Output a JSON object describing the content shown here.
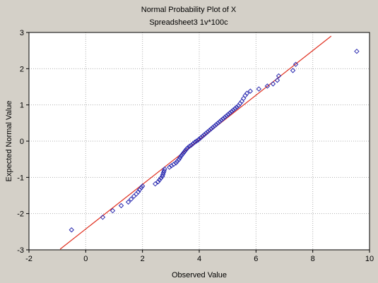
{
  "colors": {
    "background": "#d4d0c8",
    "plot_area": "#ffffff",
    "grid": "#b0b0b0",
    "fit_line": "#e03020",
    "markers": "#2b2bb0"
  },
  "chart_data": {
    "type": "scatter",
    "title": "Normal Probability Plot of X",
    "subtitle": "Spreadsheet3 1v*100c",
    "xlabel": "Observed Value",
    "ylabel": "Expected Normal Value",
    "xlim": [
      -2,
      10
    ],
    "ylim": [
      -3,
      3
    ],
    "xticks": [
      -2,
      0,
      2,
      4,
      6,
      8,
      10
    ],
    "yticks": [
      -3,
      -2,
      -1,
      0,
      1,
      2,
      3
    ],
    "grid": true,
    "marker": "diamond-open",
    "fit_line": [
      [
        -0.9,
        -2.98
      ],
      [
        8.65,
        2.9
      ]
    ],
    "points": [
      [
        -0.5,
        -2.45
      ],
      [
        0.6,
        -2.1
      ],
      [
        0.95,
        -1.92
      ],
      [
        1.25,
        -1.78
      ],
      [
        1.5,
        -1.68
      ],
      [
        1.6,
        -1.6
      ],
      [
        1.7,
        -1.52
      ],
      [
        1.78,
        -1.46
      ],
      [
        1.85,
        -1.4
      ],
      [
        1.9,
        -1.34
      ],
      [
        1.96,
        -1.28
      ],
      [
        2.0,
        -1.24
      ],
      [
        2.45,
        -1.18
      ],
      [
        2.55,
        -1.12
      ],
      [
        2.6,
        -1.07
      ],
      [
        2.65,
        -1.02
      ],
      [
        2.7,
        -0.97
      ],
      [
        2.72,
        -0.92
      ],
      [
        2.74,
        -0.87
      ],
      [
        2.76,
        -0.82
      ],
      [
        2.78,
        -0.77
      ],
      [
        2.95,
        -0.72
      ],
      [
        3.02,
        -0.68
      ],
      [
        3.1,
        -0.64
      ],
      [
        3.18,
        -0.6
      ],
      [
        3.22,
        -0.56
      ],
      [
        3.28,
        -0.51
      ],
      [
        3.32,
        -0.46
      ],
      [
        3.36,
        -0.41
      ],
      [
        3.4,
        -0.37
      ],
      [
        3.44,
        -0.33
      ],
      [
        3.48,
        -0.29
      ],
      [
        3.52,
        -0.25
      ],
      [
        3.56,
        -0.21
      ],
      [
        3.6,
        -0.18
      ],
      [
        3.66,
        -0.14
      ],
      [
        3.72,
        -0.11
      ],
      [
        3.78,
        -0.07
      ],
      [
        3.84,
        -0.03
      ],
      [
        3.9,
        0.0
      ],
      [
        3.96,
        0.03
      ],
      [
        4.0,
        0.06
      ],
      [
        4.06,
        0.1
      ],
      [
        4.12,
        0.14
      ],
      [
        4.18,
        0.18
      ],
      [
        4.24,
        0.22
      ],
      [
        4.3,
        0.26
      ],
      [
        4.36,
        0.3
      ],
      [
        4.42,
        0.34
      ],
      [
        4.48,
        0.38
      ],
      [
        4.54,
        0.42
      ],
      [
        4.6,
        0.46
      ],
      [
        4.66,
        0.5
      ],
      [
        4.72,
        0.54
      ],
      [
        4.78,
        0.58
      ],
      [
        4.84,
        0.62
      ],
      [
        4.9,
        0.66
      ],
      [
        4.96,
        0.7
      ],
      [
        5.02,
        0.74
      ],
      [
        5.08,
        0.78
      ],
      [
        5.14,
        0.82
      ],
      [
        5.2,
        0.86
      ],
      [
        5.26,
        0.9
      ],
      [
        5.32,
        0.94
      ],
      [
        5.38,
        0.98
      ],
      [
        5.44,
        1.04
      ],
      [
        5.5,
        1.1
      ],
      [
        5.56,
        1.18
      ],
      [
        5.62,
        1.26
      ],
      [
        5.68,
        1.32
      ],
      [
        5.8,
        1.38
      ],
      [
        6.1,
        1.44
      ],
      [
        6.4,
        1.52
      ],
      [
        6.6,
        1.58
      ],
      [
        6.75,
        1.68
      ],
      [
        6.8,
        1.8
      ],
      [
        7.3,
        1.95
      ],
      [
        7.4,
        2.12
      ],
      [
        9.55,
        2.48
      ]
    ]
  }
}
